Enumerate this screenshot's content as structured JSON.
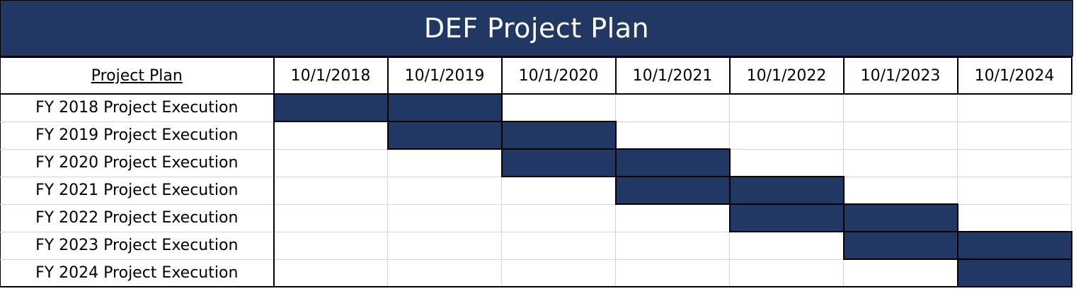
{
  "title": "DEF Project Plan",
  "colors": {
    "header_fill": "#213864",
    "bar_fill": "#213864",
    "title_text": "#ffffff"
  },
  "chart_data": {
    "type": "table",
    "header_label": "Project Plan",
    "columns": [
      "10/1/2018",
      "10/1/2019",
      "10/1/2020",
      "10/1/2021",
      "10/1/2022",
      "10/1/2023",
      "10/1/2024"
    ],
    "tasks": [
      {
        "label": "FY 2018 Project Execution",
        "filled": [
          0,
          1
        ]
      },
      {
        "label": "FY 2019 Project Execution",
        "filled": [
          1,
          2
        ]
      },
      {
        "label": "FY 2020 Project Execution",
        "filled": [
          2,
          3
        ]
      },
      {
        "label": "FY 2021 Project Execution",
        "filled": [
          3,
          4
        ]
      },
      {
        "label": "FY 2022 Project Execution",
        "filled": [
          4,
          5
        ]
      },
      {
        "label": "FY 2023 Project Execution",
        "filled": [
          5,
          6
        ]
      },
      {
        "label": "FY 2024 Project Execution",
        "filled": [
          6
        ]
      }
    ]
  }
}
